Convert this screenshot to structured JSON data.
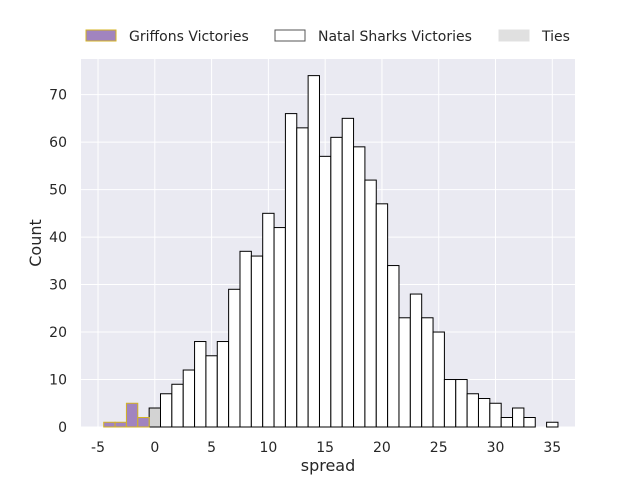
{
  "chart_data": {
    "type": "bar",
    "subtype": "histogram",
    "xlabel": "spread",
    "ylabel": "Count",
    "xlim": [
      -6.5,
      37
    ],
    "ylim": [
      0,
      77.5
    ],
    "x_ticks": [
      -5,
      0,
      5,
      10,
      15,
      20,
      25,
      30,
      35
    ],
    "y_ticks": [
      0,
      10,
      20,
      30,
      40,
      50,
      60,
      70
    ],
    "grid": true,
    "legend_position": "top (outside plot, horizontal)",
    "bin_width": 1,
    "series": [
      {
        "name": "Griffons Victories",
        "fill": "#A184BF",
        "edge": "#D4B322",
        "bins": [
          {
            "x0": -4.5,
            "x1": -3.5,
            "count": 1
          },
          {
            "x0": -3.5,
            "x1": -2.5,
            "count": 1
          },
          {
            "x0": -2.5,
            "x1": -1.5,
            "count": 5
          },
          {
            "x0": -1.5,
            "x1": -0.5,
            "count": 2
          }
        ]
      },
      {
        "name": "Natal Sharks Victories",
        "fill": "#FFFFFF",
        "edge": "#000000",
        "bins": [
          {
            "x0": 0.5,
            "x1": 1.5,
            "count": 7
          },
          {
            "x0": 1.5,
            "x1": 2.5,
            "count": 9
          },
          {
            "x0": 2.5,
            "x1": 3.5,
            "count": 12
          },
          {
            "x0": 3.5,
            "x1": 4.5,
            "count": 18
          },
          {
            "x0": 4.5,
            "x1": 5.5,
            "count": 15
          },
          {
            "x0": 5.5,
            "x1": 6.5,
            "count": 18
          },
          {
            "x0": 6.5,
            "x1": 7.5,
            "count": 29
          },
          {
            "x0": 7.5,
            "x1": 8.5,
            "count": 37
          },
          {
            "x0": 8.5,
            "x1": 9.5,
            "count": 36
          },
          {
            "x0": 9.5,
            "x1": 10.5,
            "count": 45
          },
          {
            "x0": 10.5,
            "x1": 11.5,
            "count": 42
          },
          {
            "x0": 11.5,
            "x1": 12.5,
            "count": 66
          },
          {
            "x0": 12.5,
            "x1": 13.5,
            "count": 63
          },
          {
            "x0": 13.5,
            "x1": 14.5,
            "count": 74
          },
          {
            "x0": 14.5,
            "x1": 15.5,
            "count": 57
          },
          {
            "x0": 15.5,
            "x1": 16.5,
            "count": 61
          },
          {
            "x0": 16.5,
            "x1": 17.5,
            "count": 65
          },
          {
            "x0": 17.5,
            "x1": 18.5,
            "count": 59
          },
          {
            "x0": 18.5,
            "x1": 19.5,
            "count": 52
          },
          {
            "x0": 19.5,
            "x1": 20.5,
            "count": 47
          },
          {
            "x0": 20.5,
            "x1": 21.5,
            "count": 34
          },
          {
            "x0": 21.5,
            "x1": 22.5,
            "count": 23
          },
          {
            "x0": 22.5,
            "x1": 23.5,
            "count": 28
          },
          {
            "x0": 23.5,
            "x1": 24.5,
            "count": 23
          },
          {
            "x0": 24.5,
            "x1": 25.5,
            "count": 20
          },
          {
            "x0": 25.5,
            "x1": 26.5,
            "count": 10
          },
          {
            "x0": 26.5,
            "x1": 27.5,
            "count": 10
          },
          {
            "x0": 27.5,
            "x1": 28.5,
            "count": 7
          },
          {
            "x0": 28.5,
            "x1": 29.5,
            "count": 6
          },
          {
            "x0": 29.5,
            "x1": 30.5,
            "count": 5
          },
          {
            "x0": 30.5,
            "x1": 31.5,
            "count": 2
          },
          {
            "x0": 31.5,
            "x1": 32.5,
            "count": 4
          },
          {
            "x0": 32.5,
            "x1": 33.5,
            "count": 2
          },
          {
            "x0": 34.5,
            "x1": 35.5,
            "count": 1
          }
        ]
      },
      {
        "name": "Ties",
        "fill": "#D3D3D3",
        "edge": "#000000",
        "bins": [
          {
            "x0": -0.5,
            "x1": 0.5,
            "count": 4
          }
        ]
      }
    ],
    "legend": [
      {
        "label": "Griffons Victories",
        "fill": "#A184BF",
        "edge": "#D4B322"
      },
      {
        "label": "Natal Sharks Victories",
        "fill": "#FFFFFF",
        "edge": "#555555"
      },
      {
        "label": "Ties",
        "fill": "#E0E0E0",
        "edge": "#E0E0E0"
      }
    ],
    "colors": {
      "plot_background": "#EAEAF2",
      "grid": "#FFFFFF"
    }
  }
}
